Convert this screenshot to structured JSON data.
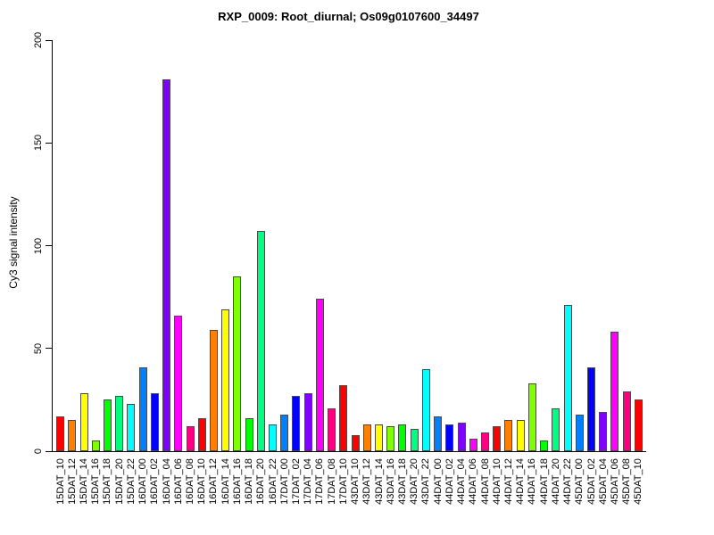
{
  "chart_data": {
    "type": "bar",
    "title": "RXP_0009: Root_diurnal; Os09g0107600_34497",
    "xlabel": "",
    "ylabel": "Cy3 signal intensity",
    "ylim": [
      0,
      200
    ],
    "yticks": [
      0,
      50,
      100,
      150,
      200
    ],
    "grid": false,
    "legend_position": "none",
    "categories": [
      "15DAT_10",
      "15DAT_12",
      "15DAT_14",
      "15DAT_16",
      "15DAT_18",
      "15DAT_20",
      "15DAT_22",
      "16DAT_00",
      "16DAT_02",
      "16DAT_04",
      "16DAT_06",
      "16DAT_08",
      "16DAT_10",
      "16DAT_12",
      "16DAT_14",
      "16DAT_16",
      "16DAT_18",
      "16DAT_20",
      "16DAT_22",
      "17DAT_00",
      "17DAT_02",
      "17DAT_04",
      "17DAT_06",
      "17DAT_08",
      "17DAT_10",
      "43DAT_10",
      "43DAT_12",
      "43DAT_14",
      "43DAT_16",
      "43DAT_18",
      "43DAT_20",
      "43DAT_22",
      "44DAT_00",
      "44DAT_02",
      "44DAT_04",
      "44DAT_06",
      "44DAT_08",
      "44DAT_10",
      "44DAT_12",
      "44DAT_14",
      "44DAT_16",
      "44DAT_18",
      "44DAT_20",
      "44DAT_22",
      "45DAT_00",
      "45DAT_02",
      "45DAT_04",
      "45DAT_06",
      "45DAT_08",
      "45DAT_10"
    ],
    "values": [
      17,
      15,
      28,
      5,
      25,
      27,
      23,
      41,
      28,
      181,
      66,
      12,
      16,
      59,
      69,
      85,
      16,
      107,
      13,
      18,
      27,
      28,
      74,
      21,
      32,
      8,
      13,
      13,
      12,
      13,
      11,
      40,
      17,
      13,
      14,
      6,
      9,
      12,
      15,
      15,
      33,
      5,
      21,
      71,
      18,
      41,
      19,
      58,
      29,
      25
    ],
    "bar_colors": [
      "#FF0000",
      "#FF8000",
      "#FFFF00",
      "#80FF00",
      "#00FF00",
      "#00FF80",
      "#00FFFF",
      "#0080FF",
      "#0000FF",
      "#8000FF",
      "#FF00FF",
      "#FF0080",
      "#FF0000",
      "#FF8000",
      "#FFFF00",
      "#80FF00",
      "#00FF00",
      "#00FF80",
      "#00FFFF",
      "#0080FF",
      "#0000FF",
      "#8000FF",
      "#FF00FF",
      "#FF0080",
      "#FF0000",
      "#FF0000",
      "#FF8000",
      "#FFFF00",
      "#80FF00",
      "#00FF00",
      "#00FF80",
      "#00FFFF",
      "#0080FF",
      "#0000FF",
      "#8000FF",
      "#FF00FF",
      "#FF0080",
      "#FF0000",
      "#FF8000",
      "#FFFF00",
      "#80FF00",
      "#00FF00",
      "#00FF80",
      "#00FFFF",
      "#0080FF",
      "#0000FF",
      "#8000FF",
      "#FF00FF",
      "#FF0080",
      "#FF0000"
    ]
  }
}
